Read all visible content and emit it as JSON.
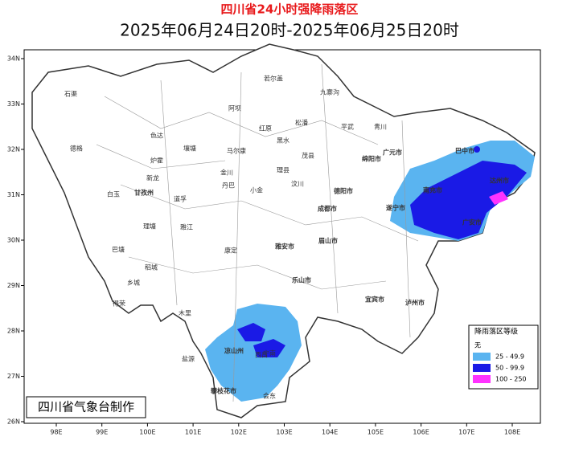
{
  "header": {
    "title": "四川省24小时强降雨落区",
    "subtitle": "2025年06月24日20时-2025年06月25日20时"
  },
  "map": {
    "lon_labels": [
      "98E",
      "99E",
      "100E",
      "101E",
      "102E",
      "103E",
      "104E",
      "105E",
      "106E",
      "107E",
      "108E"
    ],
    "lat_labels": [
      "34N",
      "33N",
      "32N",
      "31N",
      "30N",
      "29N",
      "28N",
      "27N",
      "26N"
    ],
    "places": [
      "石渠",
      "德格",
      "白玉",
      "巴塘",
      "乡城",
      "得荣",
      "稻城",
      "色达",
      "甘孜州",
      "炉霍",
      "新龙",
      "理塘",
      "雅江",
      "道孚",
      "丹巴",
      "康定",
      "阿坝",
      "壤塘",
      "马尔康",
      "金川",
      "小金",
      "红原",
      "若尔盖",
      "九寨沟",
      "松潘",
      "黑水",
      "理县",
      "茂县",
      "汶川",
      "平武",
      "青川",
      "广元市",
      "巴中市",
      "达州市",
      "南充市",
      "绵阳市",
      "德阳市",
      "成都市",
      "遂宁市",
      "雅安市",
      "乐山市",
      "眉山市",
      "宜宾市",
      "泸州市",
      "凉山州",
      "攀枝花市",
      "西昌",
      "木里",
      "盐源",
      "会东",
      "宁南",
      "广安市"
    ]
  },
  "legend": {
    "title": "降雨落区等级",
    "items": [
      {
        "label": "无",
        "color": "#ffffff"
      },
      {
        "label": "25 - 49.9",
        "color": "#5ab4f0"
      },
      {
        "label": "50 - 99.9",
        "color": "#1a1ae6"
      },
      {
        "label": "100 - 250",
        "color": "#ff33ff"
      }
    ]
  },
  "footer": "四川省气象台制作"
}
